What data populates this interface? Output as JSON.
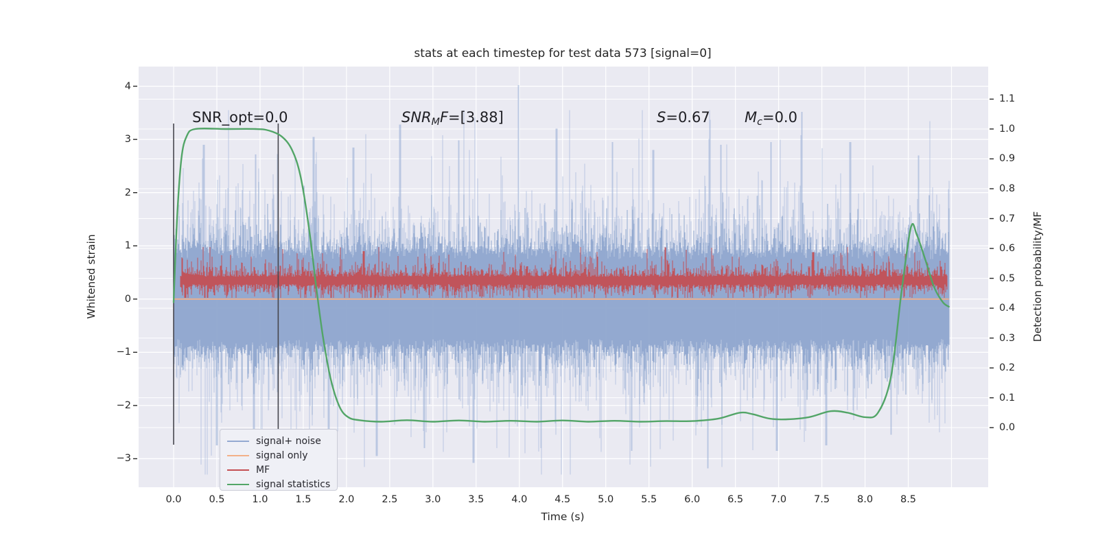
{
  "title": "stats at each timestep for test data 573 [signal=0]",
  "annotations": {
    "snr_opt": "SNR_opt=0.0",
    "snr_mf": {
      "pre": "SNR",
      "sub": "M",
      "mid": "F",
      "rest": "=[3.88]"
    },
    "s": {
      "pre": "S",
      "rest": "=0.67"
    },
    "mc": {
      "pre": "M",
      "sub": "c",
      "rest": "=0.0"
    }
  },
  "legend": {
    "items": [
      {
        "label": "signal+ noise",
        "color": "#93a9d1"
      },
      {
        "label": "signal only",
        "color": "#f3b088"
      },
      {
        "label": "MF",
        "color": "#c44e52"
      },
      {
        "label": "signal statistics",
        "color": "#52a567"
      }
    ]
  },
  "axes": {
    "x": {
      "label": "Time (s)",
      "range": [
        -0.405,
        9.425
      ],
      "ticks": [
        {
          "v": 0.0,
          "t": "0.0"
        },
        {
          "v": 0.5,
          "t": "0.5"
        },
        {
          "v": 1.0,
          "t": "1.0"
        },
        {
          "v": 1.5,
          "t": "1.5"
        },
        {
          "v": 2.0,
          "t": "2.0"
        },
        {
          "v": 2.5,
          "t": "2.5"
        },
        {
          "v": 3.0,
          "t": "3.0"
        },
        {
          "v": 3.5,
          "t": "3.5"
        },
        {
          "v": 4.0,
          "t": "4.0"
        },
        {
          "v": 4.5,
          "t": "4.5"
        },
        {
          "v": 5.0,
          "t": "5.0"
        },
        {
          "v": 5.5,
          "t": "5.5"
        },
        {
          "v": 6.0,
          "t": "6.0"
        },
        {
          "v": 6.5,
          "t": "6.5"
        },
        {
          "v": 7.0,
          "t": "7.0"
        },
        {
          "v": 7.5,
          "t": "7.5"
        },
        {
          "v": 8.0,
          "t": "8.0"
        },
        {
          "v": 8.5,
          "t": "8.5"
        },
        {
          "v": 9.0,
          "t": ""
        }
      ]
    },
    "y_left": {
      "label": "Whitened strain",
      "range": [
        -3.536,
        4.369
      ],
      "ticks": [
        {
          "v": 4,
          "t": "4"
        },
        {
          "v": 3,
          "t": "3"
        },
        {
          "v": 2,
          "t": "2"
        },
        {
          "v": 1,
          "t": "1"
        },
        {
          "v": 0,
          "t": "0"
        },
        {
          "v": -1,
          "t": "−1"
        },
        {
          "v": -2,
          "t": "−2"
        },
        {
          "v": -3,
          "t": "−3"
        }
      ]
    },
    "y_right": {
      "label": "Detection probability/MF",
      "range": [
        -0.1995,
        1.209
      ],
      "ticks": [
        {
          "v": 1.1,
          "t": "1.1"
        },
        {
          "v": 1.0,
          "t": "1.0"
        },
        {
          "v": 0.9,
          "t": "0.9"
        },
        {
          "v": 0.8,
          "t": "0.8"
        },
        {
          "v": 0.7,
          "t": "0.7"
        },
        {
          "v": 0.6,
          "t": "0.6"
        },
        {
          "v": 0.5,
          "t": "0.5"
        },
        {
          "v": 0.4,
          "t": "0.4"
        },
        {
          "v": 0.3,
          "t": "0.3"
        },
        {
          "v": 0.2,
          "t": "0.2"
        },
        {
          "v": 0.1,
          "t": "0.1"
        },
        {
          "v": 0.0,
          "t": "0.0"
        }
      ]
    }
  },
  "chart_data": {
    "type": "line",
    "title": "stats at each timestep for test data 573 [signal=0]",
    "xlabel": "Time (s)",
    "ylabel_left": "Whitened strain",
    "ylabel_right": "Detection probability/MF",
    "xlim": [
      -0.405,
      9.425
    ],
    "ylim_left": [
      -3.536,
      4.369
    ],
    "ylim_right": [
      -0.1995,
      1.209
    ],
    "grid": "white-on-gray, both axes gridlines",
    "vlines_x": [
      0.0,
      1.21
    ],
    "series": [
      {
        "name": "signal+ noise",
        "axis": "left",
        "kind": "gaussian-noise-trace",
        "t_range": [
          0.0,
          8.97
        ],
        "mean": 0.0,
        "std": 1.0,
        "dense_band": [
          -1.6,
          1.6
        ],
        "up_spikes": [
          [
            0.35,
            2.9
          ],
          [
            0.95,
            2.72
          ],
          [
            1.62,
            3.05
          ],
          [
            2.08,
            2.85
          ],
          [
            2.62,
            3.28
          ],
          [
            3.3,
            2.98
          ],
          [
            3.99,
            4.02
          ],
          [
            4.43,
            3.2
          ],
          [
            5.08,
            2.95
          ],
          [
            5.55,
            2.8
          ],
          [
            6.33,
            2.9
          ],
          [
            6.91,
            2.95
          ],
          [
            7.27,
            3.52
          ],
          [
            7.83,
            2.95
          ],
          [
            8.62,
            2.7
          ]
        ],
        "down_spikes": [
          [
            0.5,
            -2.75
          ],
          [
            0.93,
            -3.05
          ],
          [
            1.8,
            -2.85
          ],
          [
            2.35,
            -2.95
          ],
          [
            2.9,
            -2.8
          ],
          [
            3.47,
            -3.08
          ],
          [
            4.25,
            -2.8
          ],
          [
            5.3,
            -2.85
          ],
          [
            6.18,
            -3.18
          ],
          [
            6.98,
            -2.85
          ],
          [
            7.55,
            -2.75
          ],
          [
            8.3,
            -2.55
          ]
        ]
      },
      {
        "name": "signal only",
        "axis": "left",
        "kind": "constant-line",
        "t_range": [
          0.0,
          8.97
        ],
        "value": 0.0
      },
      {
        "name": "MF",
        "axis": "left",
        "kind": "noise-band-trace",
        "t_range": [
          0.08,
          8.95
        ],
        "center": 0.35,
        "band": [
          0.05,
          0.9
        ],
        "up_spikes": [
          [
            2.2,
            0.9
          ],
          [
            5.69,
            0.97
          ],
          [
            7.4,
            0.88
          ]
        ]
      },
      {
        "name": "signal statistics",
        "axis": "right",
        "kind": "smooth-curve",
        "keypoints": [
          [
            0.0,
            0.42
          ],
          [
            0.04,
            0.7
          ],
          [
            0.09,
            0.9
          ],
          [
            0.15,
            0.975
          ],
          [
            0.25,
            1.0
          ],
          [
            0.6,
            1.0
          ],
          [
            0.95,
            1.0
          ],
          [
            1.1,
            0.995
          ],
          [
            1.25,
            0.975
          ],
          [
            1.37,
            0.93
          ],
          [
            1.47,
            0.84
          ],
          [
            1.57,
            0.66
          ],
          [
            1.65,
            0.47
          ],
          [
            1.73,
            0.3
          ],
          [
            1.82,
            0.16
          ],
          [
            1.92,
            0.07
          ],
          [
            2.02,
            0.035
          ],
          [
            2.15,
            0.025
          ],
          [
            2.4,
            0.02
          ],
          [
            2.7,
            0.025
          ],
          [
            3.0,
            0.02
          ],
          [
            3.3,
            0.024
          ],
          [
            3.6,
            0.02
          ],
          [
            3.9,
            0.023
          ],
          [
            4.2,
            0.02
          ],
          [
            4.5,
            0.024
          ],
          [
            4.8,
            0.02
          ],
          [
            5.1,
            0.023
          ],
          [
            5.4,
            0.02
          ],
          [
            5.7,
            0.022
          ],
          [
            6.0,
            0.022
          ],
          [
            6.3,
            0.03
          ],
          [
            6.55,
            0.05
          ],
          [
            6.7,
            0.045
          ],
          [
            6.9,
            0.03
          ],
          [
            7.1,
            0.028
          ],
          [
            7.35,
            0.035
          ],
          [
            7.6,
            0.055
          ],
          [
            7.8,
            0.05
          ],
          [
            8.0,
            0.035
          ],
          [
            8.15,
            0.05
          ],
          [
            8.3,
            0.17
          ],
          [
            8.42,
            0.45
          ],
          [
            8.53,
            0.67
          ],
          [
            8.6,
            0.645
          ],
          [
            8.7,
            0.56
          ],
          [
            8.8,
            0.47
          ],
          [
            8.9,
            0.42
          ],
          [
            8.97,
            0.405
          ]
        ]
      }
    ],
    "annotation_values": {
      "SNR_opt": 0.0,
      "SNR_MF": [
        3.88
      ],
      "S": 0.67,
      "M_c": 0.0
    }
  }
}
